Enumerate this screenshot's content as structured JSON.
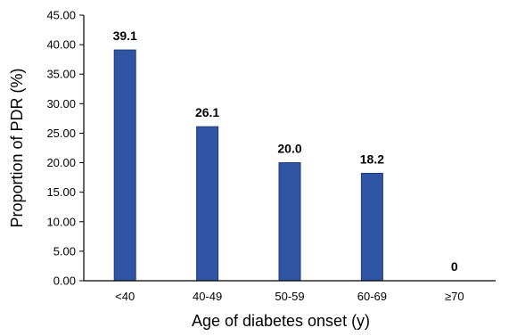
{
  "chart_data": {
    "type": "bar",
    "title": "",
    "xlabel": "Age of diabetes onset (y)",
    "ylabel": "Proportion of PDR (%)",
    "categories": [
      "<40",
      "40-49",
      "50-59",
      "60-69",
      "≥70"
    ],
    "values": [
      39.1,
      26.1,
      20.0,
      18.2,
      0
    ],
    "data_labels": [
      "39.1",
      "26.1",
      "20.0",
      "18.2",
      "0"
    ],
    "ylim": [
      0,
      45
    ],
    "yticks": [
      0,
      5,
      10,
      15,
      20,
      25,
      30,
      35,
      40,
      45
    ],
    "ytick_labels": [
      "0.00",
      "5.00",
      "10.00",
      "15.00",
      "20.00",
      "25.00",
      "30.00",
      "35.00",
      "40.00",
      "45.00"
    ],
    "grid": false,
    "legend": "none",
    "bar_color": "#2f55a4",
    "bar_edge_color": "#1c3a78"
  }
}
